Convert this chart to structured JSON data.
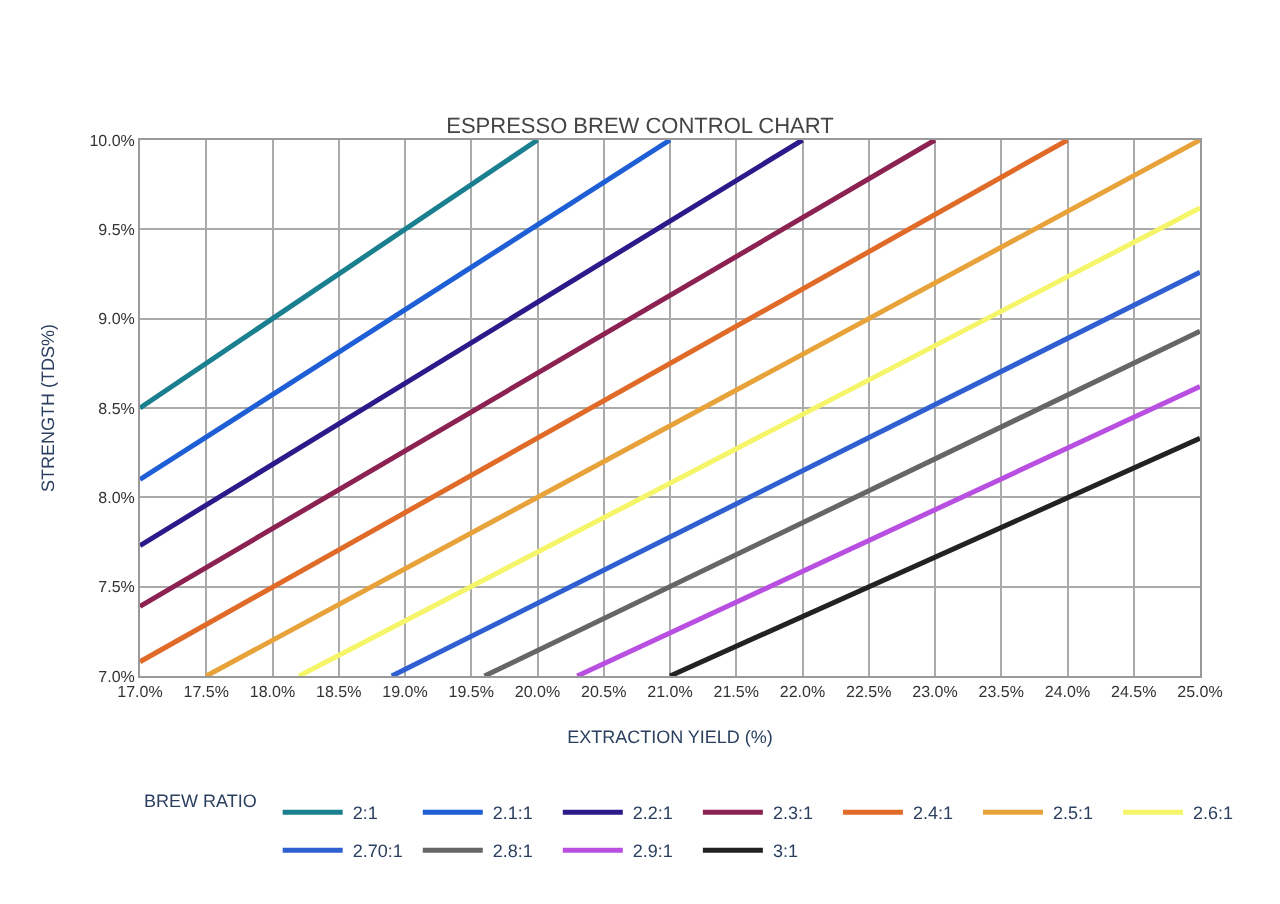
{
  "chart_data": {
    "type": "line",
    "title": "ESPRESSO BREW CONTROL CHART",
    "xlabel": "EXTRACTION YIELD (%)",
    "ylabel": "STRENGTH (TDS%)",
    "legend_title": "BREW RATIO",
    "legend": "bottom",
    "grid": true,
    "marker": "none",
    "line_style": "solid",
    "xlim": [
      17,
      25
    ],
    "ylim": [
      7,
      10
    ],
    "xticks": [
      {
        "value": 17,
        "label": "17.0%"
      },
      {
        "value": 17.5,
        "label": "17.5%"
      },
      {
        "value": 18,
        "label": "18.0%"
      },
      {
        "value": 18.5,
        "label": "18.5%"
      },
      {
        "value": 19,
        "label": "19.0%"
      },
      {
        "value": 19.5,
        "label": "19.5%"
      },
      {
        "value": 20,
        "label": "20.0%"
      },
      {
        "value": 20.5,
        "label": "20.5%"
      },
      {
        "value": 21,
        "label": "21.0%"
      },
      {
        "value": 21.5,
        "label": "21.5%"
      },
      {
        "value": 22,
        "label": "22.0%"
      },
      {
        "value": 22.5,
        "label": "22.5%"
      },
      {
        "value": 23,
        "label": "23.0%"
      },
      {
        "value": 23.5,
        "label": "23.5%"
      },
      {
        "value": 24,
        "label": "24.0%"
      },
      {
        "value": 24.5,
        "label": "24.5%"
      },
      {
        "value": 25,
        "label": "25.0%"
      }
    ],
    "yticks": [
      {
        "value": 7,
        "label": "7.0%"
      },
      {
        "value": 7.5,
        "label": "7.5%"
      },
      {
        "value": 8,
        "label": "8.0%"
      },
      {
        "value": 8.5,
        "label": "8.5%"
      },
      {
        "value": 9,
        "label": "9.0%"
      },
      {
        "value": 9.5,
        "label": "9.5%"
      },
      {
        "value": 10,
        "label": "10.0%"
      }
    ],
    "series": [
      {
        "name": "2:1",
        "color": "#1a7f8e",
        "x": [
          17,
          20
        ],
        "values": [
          8.5,
          10
        ]
      },
      {
        "name": "2.1:1",
        "color": "#1f5fd6",
        "x": [
          17,
          21
        ],
        "values": [
          8.1,
          10
        ]
      },
      {
        "name": "2.2:1",
        "color": "#2a1a8a",
        "x": [
          17,
          22
        ],
        "values": [
          7.73,
          10
        ]
      },
      {
        "name": "2.3:1",
        "color": "#8b2252",
        "x": [
          17,
          23
        ],
        "values": [
          7.39,
          10
        ]
      },
      {
        "name": "2.4:1",
        "color": "#e06a28",
        "x": [
          17,
          24
        ],
        "values": [
          7.08,
          10
        ]
      },
      {
        "name": "2.5:1",
        "color": "#e8a23a",
        "x": [
          17.5,
          25
        ],
        "values": [
          7,
          10
        ]
      },
      {
        "name": "2.6:1",
        "color": "#f5f56a",
        "x": [
          18.2,
          25
        ],
        "values": [
          7,
          9.62
        ]
      },
      {
        "name": "2.70:1",
        "color": "#2f5fd0",
        "x": [
          18.9,
          25
        ],
        "values": [
          7,
          9.26
        ]
      },
      {
        "name": "2.8:1",
        "color": "#666666",
        "x": [
          19.6,
          25
        ],
        "values": [
          7,
          8.93
        ]
      },
      {
        "name": "2.9:1",
        "color": "#b84fe0",
        "x": [
          20.3,
          25
        ],
        "values": [
          7,
          8.62
        ]
      },
      {
        "name": "3:1",
        "color": "#222222",
        "x": [
          21,
          25
        ],
        "values": [
          7,
          8.33
        ]
      }
    ]
  }
}
